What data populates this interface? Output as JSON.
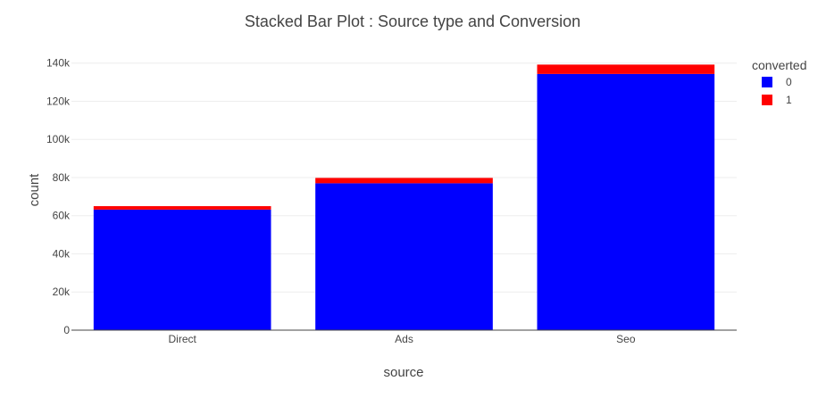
{
  "chart_data": {
    "type": "bar",
    "stacked": true,
    "title": "Stacked Bar Plot : Source type and Conversion",
    "xlabel": "source",
    "ylabel": "count",
    "categories": [
      "Direct",
      "Ads",
      "Seo"
    ],
    "series": [
      {
        "name": "0",
        "color": "#0000ff",
        "values": [
          63200,
          77000,
          134300
        ]
      },
      {
        "name": "1",
        "color": "#ff0000",
        "values": [
          1800,
          2800,
          4900
        ]
      }
    ],
    "ylim": [
      0,
      145000
    ],
    "yticks": [
      0,
      20000,
      40000,
      60000,
      80000,
      100000,
      120000,
      140000
    ],
    "ytick_labels": [
      "0",
      "20k",
      "40k",
      "60k",
      "80k",
      "100k",
      "120k",
      "140k"
    ],
    "grid": true,
    "legend": {
      "title": "converted",
      "placement": "top-right",
      "entries": [
        "0",
        "1"
      ]
    }
  }
}
